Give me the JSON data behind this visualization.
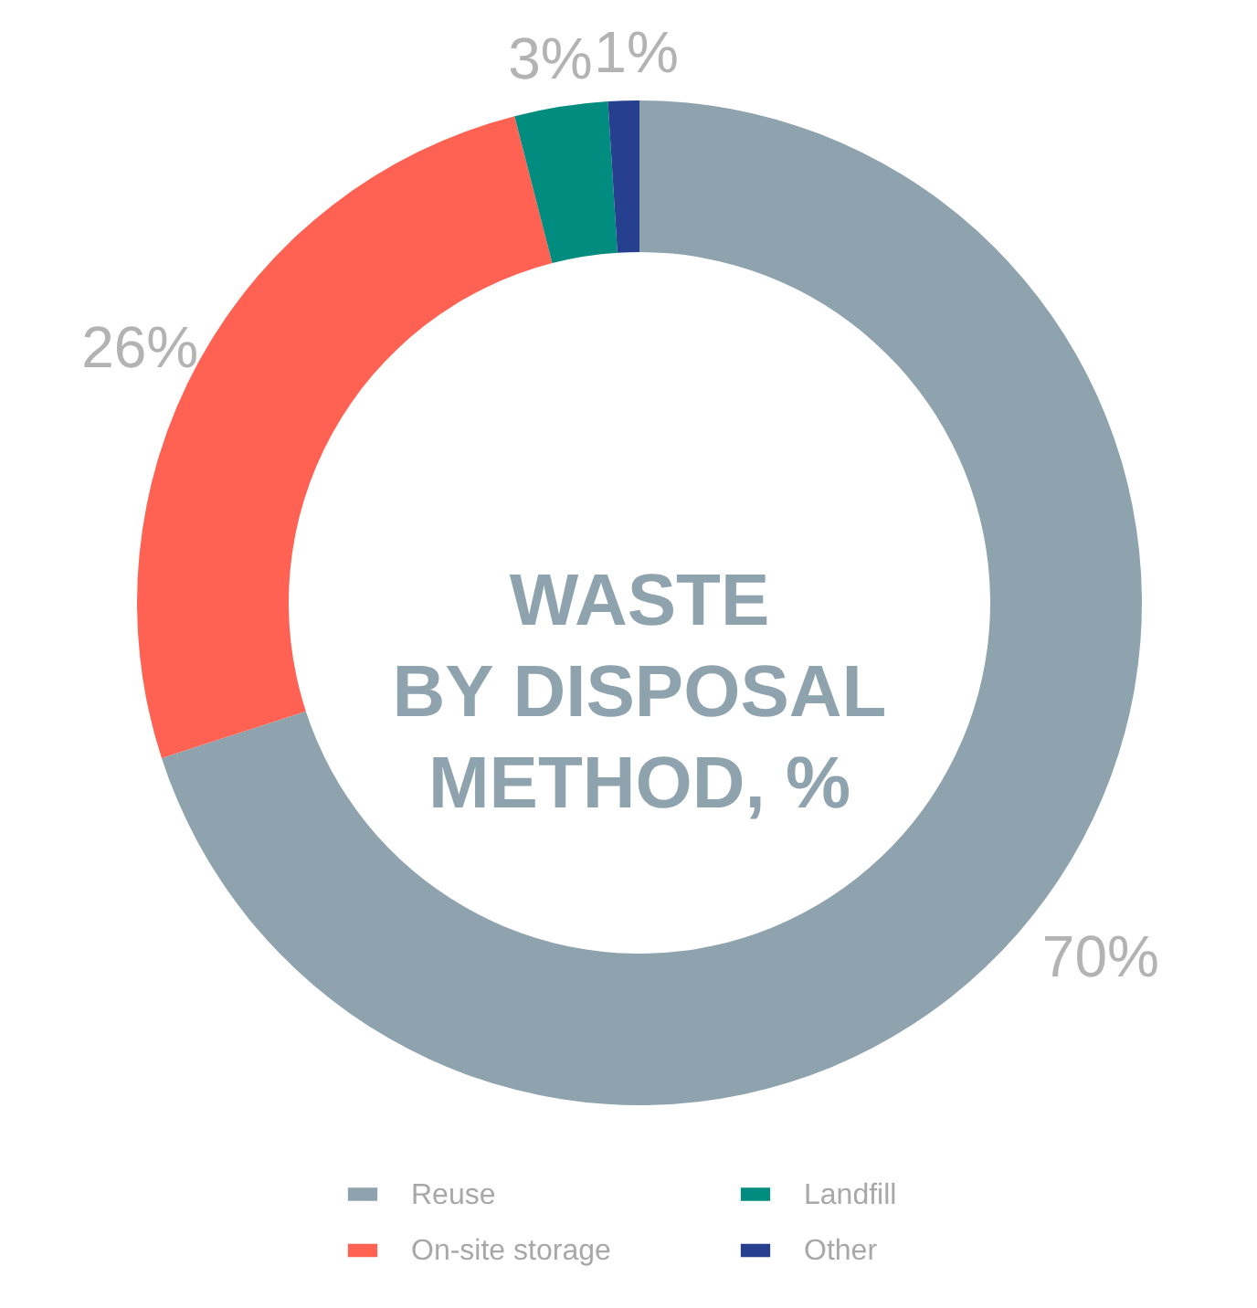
{
  "chart_data": {
    "type": "donut",
    "title": "WASTE BY DISPOSAL METHOD, %",
    "categories": [
      "Reuse",
      "On-site storage",
      "Landfill",
      "Other"
    ],
    "values": [
      70,
      26,
      3,
      1
    ],
    "colors": [
      "#8fa3ae",
      "#ff6252",
      "#008c7e",
      "#263f8f"
    ],
    "value_labels": [
      "70%",
      "26%",
      "3%",
      "1%"
    ],
    "legend": "bottom"
  }
}
